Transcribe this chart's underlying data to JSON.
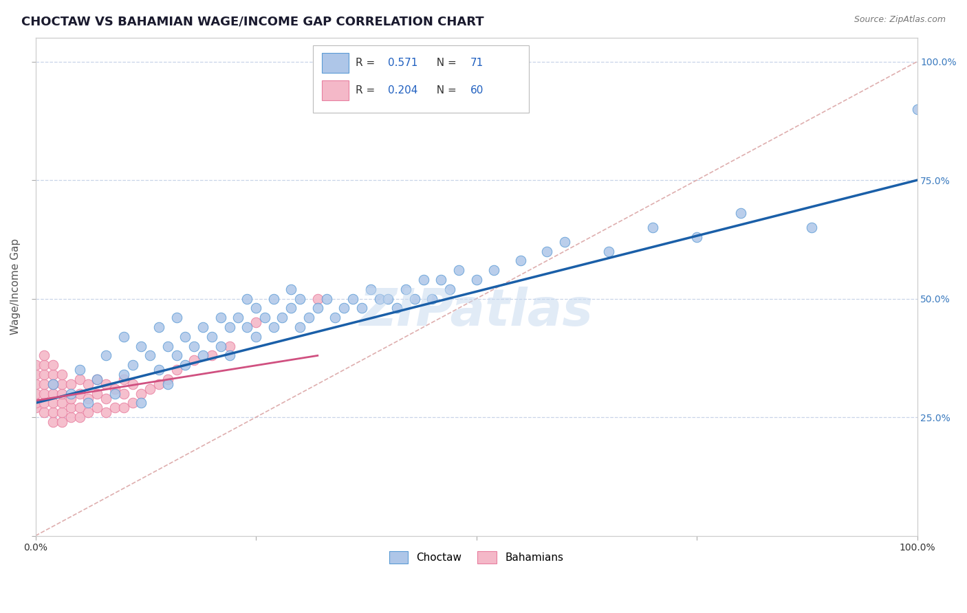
{
  "title": "CHOCTAW VS BAHAMIAN WAGE/INCOME GAP CORRELATION CHART",
  "source": "Source: ZipAtlas.com",
  "ylabel": "Wage/Income Gap",
  "watermark": "ZIPatlas",
  "blue_color": "#5b9bd5",
  "pink_color": "#e87fa0",
  "blue_fill": "#aec6e8",
  "pink_fill": "#f4b8c8",
  "trend_blue": "#1a5fa8",
  "trend_pink": "#d05080",
  "diagonal_color": "#d9a0a0",
  "xlim": [
    0.0,
    1.0
  ],
  "ylim": [
    0.0,
    1.05
  ],
  "background_color": "#ffffff",
  "grid_color": "#c8d4e8",
  "choctaw_x": [
    0.02,
    0.04,
    0.05,
    0.06,
    0.07,
    0.08,
    0.09,
    0.1,
    0.1,
    0.11,
    0.12,
    0.12,
    0.13,
    0.14,
    0.14,
    0.15,
    0.15,
    0.16,
    0.16,
    0.17,
    0.17,
    0.18,
    0.19,
    0.19,
    0.2,
    0.21,
    0.21,
    0.22,
    0.22,
    0.23,
    0.24,
    0.24,
    0.25,
    0.25,
    0.26,
    0.27,
    0.27,
    0.28,
    0.29,
    0.29,
    0.3,
    0.3,
    0.31,
    0.32,
    0.33,
    0.34,
    0.35,
    0.36,
    0.37,
    0.38,
    0.39,
    0.4,
    0.41,
    0.42,
    0.43,
    0.44,
    0.45,
    0.46,
    0.47,
    0.48,
    0.5,
    0.52,
    0.55,
    0.58,
    0.6,
    0.65,
    0.7,
    0.75,
    0.8,
    0.88,
    1.0
  ],
  "choctaw_y": [
    0.32,
    0.3,
    0.35,
    0.28,
    0.33,
    0.38,
    0.3,
    0.34,
    0.42,
    0.36,
    0.4,
    0.28,
    0.38,
    0.35,
    0.44,
    0.32,
    0.4,
    0.38,
    0.46,
    0.36,
    0.42,
    0.4,
    0.44,
    0.38,
    0.42,
    0.4,
    0.46,
    0.44,
    0.38,
    0.46,
    0.44,
    0.5,
    0.42,
    0.48,
    0.46,
    0.44,
    0.5,
    0.46,
    0.48,
    0.52,
    0.44,
    0.5,
    0.46,
    0.48,
    0.5,
    0.46,
    0.48,
    0.5,
    0.48,
    0.52,
    0.5,
    0.5,
    0.48,
    0.52,
    0.5,
    0.54,
    0.5,
    0.54,
    0.52,
    0.56,
    0.54,
    0.56,
    0.58,
    0.6,
    0.62,
    0.6,
    0.65,
    0.63,
    0.68,
    0.65,
    0.9
  ],
  "bahamian_x": [
    0.0,
    0.0,
    0.0,
    0.0,
    0.0,
    0.0,
    0.01,
    0.01,
    0.01,
    0.01,
    0.01,
    0.01,
    0.01,
    0.02,
    0.02,
    0.02,
    0.02,
    0.02,
    0.02,
    0.02,
    0.03,
    0.03,
    0.03,
    0.03,
    0.03,
    0.03,
    0.04,
    0.04,
    0.04,
    0.04,
    0.05,
    0.05,
    0.05,
    0.05,
    0.06,
    0.06,
    0.06,
    0.07,
    0.07,
    0.07,
    0.08,
    0.08,
    0.08,
    0.09,
    0.09,
    0.1,
    0.1,
    0.1,
    0.11,
    0.11,
    0.12,
    0.13,
    0.14,
    0.15,
    0.16,
    0.18,
    0.2,
    0.22,
    0.25,
    0.32
  ],
  "bahamian_y": [
    0.27,
    0.28,
    0.3,
    0.32,
    0.34,
    0.36,
    0.26,
    0.28,
    0.3,
    0.32,
    0.34,
    0.36,
    0.38,
    0.24,
    0.26,
    0.28,
    0.3,
    0.32,
    0.34,
    0.36,
    0.24,
    0.26,
    0.28,
    0.3,
    0.32,
    0.34,
    0.25,
    0.27,
    0.29,
    0.32,
    0.25,
    0.27,
    0.3,
    0.33,
    0.26,
    0.29,
    0.32,
    0.27,
    0.3,
    0.33,
    0.26,
    0.29,
    0.32,
    0.27,
    0.31,
    0.27,
    0.3,
    0.33,
    0.28,
    0.32,
    0.3,
    0.31,
    0.32,
    0.33,
    0.35,
    0.37,
    0.38,
    0.4,
    0.45,
    0.5
  ],
  "blue_trend_x0": 0.0,
  "blue_trend_y0": 0.28,
  "blue_trend_x1": 1.0,
  "blue_trend_y1": 0.75,
  "pink_trend_x0": 0.0,
  "pink_trend_y0": 0.285,
  "pink_trend_x1": 0.32,
  "pink_trend_y1": 0.38
}
